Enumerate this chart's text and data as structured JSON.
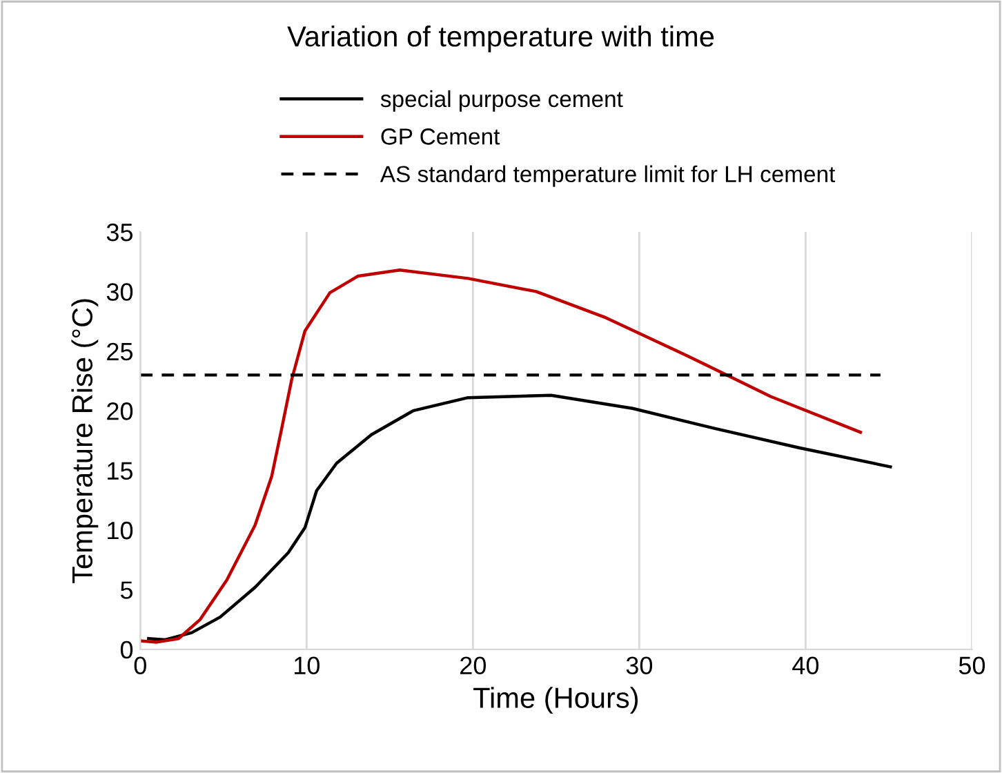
{
  "chart_data": {
    "type": "line",
    "title": "Variation of temperature with time",
    "xlabel": "Time (Hours)",
    "ylabel": "Temperature Rise (°C)",
    "xlim": [
      0,
      50
    ],
    "xticks": [
      0,
      10,
      20,
      30,
      40,
      50
    ],
    "ylim": [
      0,
      35
    ],
    "yticks": [
      0,
      5,
      10,
      15,
      20,
      25,
      30,
      35
    ],
    "grid": "x",
    "legend": "top",
    "marker": "none",
    "series": [
      {
        "name": "special purpose cement",
        "color": "#000000",
        "x": [
          0.5,
          1.5,
          3.1,
          4.8,
          6.9,
          8.9,
          9.9,
          10.6,
          11.8,
          13.9,
          16.4,
          19.7,
          24.7,
          29.6,
          34.6,
          39.6,
          45.1
        ],
        "values": [
          0.9,
          0.8,
          1.4,
          2.7,
          5.2,
          8.1,
          10.2,
          13.3,
          15.6,
          18,
          20,
          21.1,
          21.3,
          20.2,
          18.5,
          16.9,
          15.3
        ]
      },
      {
        "name": "GP Cement",
        "color": "#c00000",
        "x": [
          0.1,
          1,
          2.3,
          3.6,
          5.2,
          6.9,
          7.9,
          8.5,
          9.1,
          9.9,
          11.4,
          13.1,
          15.6,
          19.7,
          23.8,
          28,
          32.9,
          37.9,
          43.3
        ],
        "values": [
          0.7,
          0.6,
          0.9,
          2.5,
          5.8,
          10.4,
          14.5,
          18.5,
          22.6,
          26.7,
          29.9,
          31.3,
          31.8,
          31.1,
          30.0,
          27.8,
          24.6,
          21.2,
          18.2
        ]
      },
      {
        "name": "AS standard temperature limit for LH cement",
        "color": "#000000",
        "line_style": "dashed",
        "x": [
          0,
          44.5
        ],
        "values": [
          23,
          23
        ]
      }
    ]
  }
}
